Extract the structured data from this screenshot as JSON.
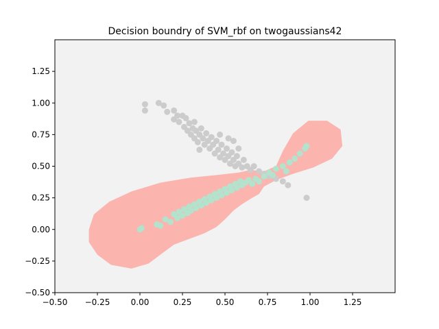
{
  "chart_data": {
    "type": "scatter",
    "title": "Decision boundry of SVM_rbf on twogaussians42",
    "xlabel": "",
    "ylabel": "",
    "xlim": [
      -0.5,
      1.5
    ],
    "ylim": [
      -0.5,
      1.5
    ],
    "x_ticks": [
      "−0.50",
      "−0.25",
      "0.00",
      "0.25",
      "0.50",
      "0.75",
      "1.00",
      "1.25"
    ],
    "x_tick_values": [
      -0.5,
      -0.25,
      0.0,
      0.25,
      0.5,
      0.75,
      1.0,
      1.25
    ],
    "y_ticks": [
      "−0.50",
      "−0.25",
      "0.00",
      "0.25",
      "0.50",
      "0.75",
      "1.00",
      "1.25"
    ],
    "y_tick_values": [
      -0.5,
      -0.25,
      0.0,
      0.25,
      0.5,
      0.75,
      1.0,
      1.25
    ],
    "colors": {
      "background": "#f2f2f2",
      "decision_region": "#fbb4ae",
      "class_gray": "#cccccc",
      "class_green": "#b3e2cd"
    },
    "decision_region": [
      {
        "name": "",
        "polygon": [
          [
            -0.3,
            0.0
          ],
          [
            -0.27,
            0.12
          ],
          [
            -0.18,
            0.22
          ],
          [
            -0.05,
            0.3
          ],
          [
            0.12,
            0.37
          ],
          [
            0.3,
            0.41
          ],
          [
            0.45,
            0.43
          ],
          [
            0.58,
            0.45
          ],
          [
            0.65,
            0.47
          ],
          [
            0.73,
            0.46
          ],
          [
            0.8,
            0.5
          ],
          [
            0.84,
            0.62
          ],
          [
            0.9,
            0.76
          ],
          [
            0.99,
            0.86
          ],
          [
            1.1,
            0.86
          ],
          [
            1.18,
            0.79
          ],
          [
            1.19,
            0.66
          ],
          [
            1.13,
            0.56
          ],
          [
            1.02,
            0.49
          ],
          [
            0.9,
            0.44
          ],
          [
            0.8,
            0.39
          ],
          [
            0.73,
            0.34
          ],
          [
            0.7,
            0.28
          ],
          [
            0.66,
            0.25
          ],
          [
            0.6,
            0.2
          ],
          [
            0.55,
            0.15
          ],
          [
            0.5,
            0.08
          ],
          [
            0.45,
            0.02
          ],
          [
            0.38,
            -0.03
          ],
          [
            0.28,
            -0.08
          ],
          [
            0.2,
            -0.12
          ],
          [
            0.12,
            -0.2
          ],
          [
            0.05,
            -0.27
          ],
          [
            -0.05,
            -0.31
          ],
          [
            -0.17,
            -0.28
          ],
          [
            -0.25,
            -0.2
          ],
          [
            -0.3,
            -0.1
          ]
        ]
      }
    ],
    "series": [
      {
        "name": "",
        "color": "#cccccc",
        "points": [
          [
            0.03,
            0.99
          ],
          [
            0.03,
            0.94
          ],
          [
            0.11,
            1.0
          ],
          [
            0.14,
            0.98
          ],
          [
            0.16,
            0.93
          ],
          [
            0.2,
            0.94
          ],
          [
            0.2,
            0.87
          ],
          [
            0.22,
            0.9
          ],
          [
            0.23,
            0.85
          ],
          [
            0.25,
            0.9
          ],
          [
            0.26,
            0.81
          ],
          [
            0.27,
            0.88
          ],
          [
            0.28,
            0.78
          ],
          [
            0.29,
            0.84
          ],
          [
            0.3,
            0.75
          ],
          [
            0.31,
            0.8
          ],
          [
            0.32,
            0.85
          ],
          [
            0.32,
            0.72
          ],
          [
            0.33,
            0.78
          ],
          [
            0.34,
            0.69
          ],
          [
            0.35,
            0.75
          ],
          [
            0.36,
            0.8
          ],
          [
            0.37,
            0.72
          ],
          [
            0.38,
            0.67
          ],
          [
            0.39,
            0.76
          ],
          [
            0.4,
            0.7
          ],
          [
            0.41,
            0.64
          ],
          [
            0.42,
            0.73
          ],
          [
            0.43,
            0.67
          ],
          [
            0.44,
            0.6
          ],
          [
            0.45,
            0.7
          ],
          [
            0.46,
            0.63
          ],
          [
            0.47,
            0.57
          ],
          [
            0.48,
            0.67
          ],
          [
            0.49,
            0.6
          ],
          [
            0.5,
            0.55
          ],
          [
            0.51,
            0.64
          ],
          [
            0.52,
            0.58
          ],
          [
            0.53,
            0.52
          ],
          [
            0.54,
            0.61
          ],
          [
            0.55,
            0.55
          ],
          [
            0.56,
            0.5
          ],
          [
            0.57,
            0.58
          ],
          [
            0.58,
            0.52
          ],
          [
            0.6,
            0.49
          ],
          [
            0.61,
            0.55
          ],
          [
            0.63,
            0.5
          ],
          [
            0.65,
            0.47
          ],
          [
            0.67,
            0.5
          ],
          [
            0.7,
            0.46
          ],
          [
            0.73,
            0.44
          ],
          [
            0.76,
            0.42
          ],
          [
            0.8,
            0.4
          ],
          [
            0.84,
            0.38
          ],
          [
            0.87,
            0.35
          ],
          [
            0.52,
            0.72
          ],
          [
            0.55,
            0.7
          ],
          [
            0.47,
            0.75
          ],
          [
            0.58,
            0.64
          ],
          [
            0.35,
            0.63
          ],
          [
            0.98,
            0.25
          ]
        ]
      },
      {
        "name": "",
        "color": "#b3e2cd",
        "points": [
          [
            0.0,
            0.0
          ],
          [
            0.01,
            0.01
          ],
          [
            0.1,
            0.04
          ],
          [
            0.12,
            0.03
          ],
          [
            0.15,
            0.08
          ],
          [
            0.18,
            0.06
          ],
          [
            0.2,
            0.12
          ],
          [
            0.22,
            0.09
          ],
          [
            0.23,
            0.14
          ],
          [
            0.25,
            0.11
          ],
          [
            0.26,
            0.16
          ],
          [
            0.28,
            0.13
          ],
          [
            0.29,
            0.18
          ],
          [
            0.3,
            0.15
          ],
          [
            0.32,
            0.2
          ],
          [
            0.33,
            0.17
          ],
          [
            0.35,
            0.22
          ],
          [
            0.36,
            0.19
          ],
          [
            0.38,
            0.24
          ],
          [
            0.39,
            0.21
          ],
          [
            0.41,
            0.26
          ],
          [
            0.42,
            0.23
          ],
          [
            0.44,
            0.28
          ],
          [
            0.45,
            0.25
          ],
          [
            0.47,
            0.3
          ],
          [
            0.48,
            0.27
          ],
          [
            0.5,
            0.32
          ],
          [
            0.51,
            0.29
          ],
          [
            0.53,
            0.34
          ],
          [
            0.54,
            0.31
          ],
          [
            0.56,
            0.36
          ],
          [
            0.57,
            0.33
          ],
          [
            0.59,
            0.38
          ],
          [
            0.6,
            0.35
          ],
          [
            0.62,
            0.37
          ],
          [
            0.64,
            0.39
          ],
          [
            0.66,
            0.36
          ],
          [
            0.68,
            0.4
          ],
          [
            0.7,
            0.38
          ],
          [
            0.73,
            0.42
          ],
          [
            0.76,
            0.45
          ],
          [
            0.8,
            0.48
          ],
          [
            0.84,
            0.5
          ],
          [
            0.88,
            0.53
          ],
          [
            0.91,
            0.56
          ],
          [
            0.94,
            0.6
          ],
          [
            0.97,
            0.64
          ],
          [
            0.98,
            0.66
          ],
          [
            0.86,
            0.46
          ],
          [
            0.78,
            0.43
          ]
        ]
      }
    ],
    "grid": false,
    "legend": "none"
  }
}
